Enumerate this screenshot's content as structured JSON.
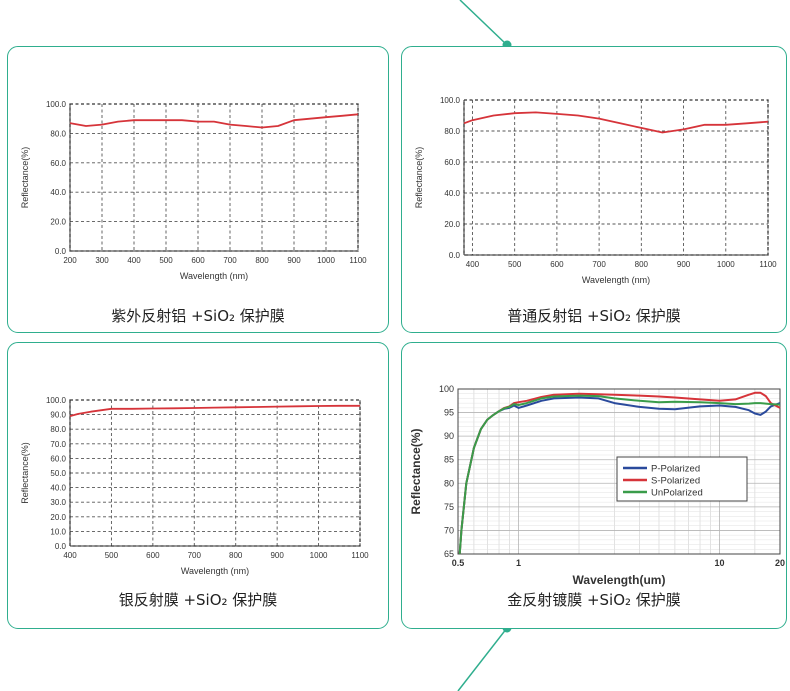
{
  "colors": {
    "card_border": "#2fae8e",
    "reflect_line": "#d6343a",
    "grid": "#555555"
  },
  "panels": [
    {
      "caption": "紫外反射铝 +SiO₂ 保护膜"
    },
    {
      "caption": "普通反射铝 +SiO₂ 保护膜"
    },
    {
      "caption": "银反射膜 +SiO₂ 保护膜"
    },
    {
      "caption": "金反射镀膜 +SiO₂ 保护膜"
    }
  ],
  "chart_data": [
    {
      "type": "line",
      "xlabel": "Wavelength (nm)",
      "ylabel": "Reflectance(%)",
      "xlim": [
        200,
        1100
      ],
      "ylim": [
        0,
        100
      ],
      "xticks": [
        "200",
        "300",
        "400",
        "500",
        "600",
        "700",
        "800",
        "900",
        "1000",
        "1100"
      ],
      "yticks": [
        "0.0",
        "20.0",
        "40.0",
        "60.0",
        "80.0",
        "100.0"
      ],
      "grid": true,
      "series": [
        {
          "color": "#d6343a",
          "x": [
            200,
            250,
            300,
            350,
            400,
            450,
            500,
            550,
            600,
            650,
            700,
            750,
            800,
            850,
            900,
            950,
            1000,
            1050,
            1100
          ],
          "y": [
            87,
            85,
            86,
            88,
            89,
            89,
            89,
            89,
            88,
            88,
            86,
            85,
            84,
            85,
            89,
            90,
            91,
            92,
            93
          ]
        }
      ]
    },
    {
      "type": "line",
      "xlabel": "Wavelength (nm)",
      "ylabel": "Reflectance(%)",
      "xlim": [
        380,
        1100
      ],
      "ylim": [
        0,
        100
      ],
      "xticks": [
        "400",
        "500",
        "600",
        "700",
        "800",
        "900",
        "1000",
        "1100"
      ],
      "yticks": [
        "0.0",
        "20.0",
        "40.0",
        "60.0",
        "80.0",
        "100.0"
      ],
      "grid": true,
      "series": [
        {
          "color": "#d6343a",
          "x": [
            380,
            400,
            450,
            500,
            550,
            600,
            650,
            700,
            750,
            800,
            850,
            900,
            950,
            1000,
            1050,
            1100
          ],
          "y": [
            85,
            87,
            90,
            91.5,
            92,
            91,
            90,
            88,
            85,
            82,
            79,
            81,
            84,
            84,
            85,
            86
          ]
        }
      ]
    },
    {
      "type": "line",
      "xlabel": "Wavelength (nm)",
      "ylabel": "Reflectance(%)",
      "xlim": [
        400,
        1100
      ],
      "ylim": [
        0,
        100
      ],
      "xticks": [
        "400",
        "500",
        "600",
        "700",
        "800",
        "900",
        "1000",
        "1100"
      ],
      "yticks": [
        "0.0",
        "10.0",
        "20.0",
        "30.0",
        "40.0",
        "50.0",
        "60.0",
        "70.0",
        "80.0",
        "90.0",
        "100.0"
      ],
      "grid": true,
      "series": [
        {
          "color": "#d6343a",
          "x": [
            400,
            420,
            450,
            500,
            550,
            600,
            650,
            700,
            750,
            800,
            850,
            900,
            950,
            1000,
            1050,
            1100
          ],
          "y": [
            89,
            90.5,
            92,
            94,
            94,
            94.2,
            94.3,
            94.5,
            94.8,
            95,
            95.2,
            95.5,
            95.7,
            95.9,
            96,
            96
          ]
        }
      ]
    },
    {
      "type": "line",
      "xlabel": "Wavelength(um)",
      "ylabel": "Reflectance(%)",
      "xscale": "log",
      "xlim": [
        0.5,
        20
      ],
      "ylim": [
        65,
        100
      ],
      "xticks": [
        "0.5",
        "1",
        "10",
        "20"
      ],
      "yticks": [
        "65",
        "70",
        "75",
        "80",
        "85",
        "90",
        "95",
        "100"
      ],
      "grid": true,
      "legend": "center-right",
      "series": [
        {
          "name": "P-Polarized",
          "color": "#2a4a9c",
          "x": [
            0.51,
            0.52,
            0.55,
            0.6,
            0.65,
            0.7,
            0.75,
            0.8,
            0.85,
            0.9,
            0.95,
            1.0,
            1.1,
            1.3,
            1.5,
            2.0,
            2.5,
            3,
            4,
            5,
            6,
            8,
            10,
            12,
            14,
            15,
            16,
            17,
            18,
            20
          ],
          "y": [
            65,
            70,
            80,
            87.5,
            91.5,
            93.5,
            94.5,
            95.3,
            95.8,
            96,
            96.5,
            96,
            96.5,
            97.5,
            98,
            98.2,
            98,
            97,
            96.2,
            95.8,
            95.7,
            96.3,
            96.5,
            96.2,
            95.5,
            94.8,
            94.5,
            95.2,
            96.3,
            97
          ]
        },
        {
          "name": "S-Polarized",
          "color": "#d6343a",
          "x": [
            0.51,
            0.52,
            0.55,
            0.6,
            0.65,
            0.7,
            0.75,
            0.8,
            0.85,
            0.9,
            0.95,
            1.0,
            1.1,
            1.3,
            1.5,
            2.0,
            2.5,
            3,
            4,
            5,
            6,
            8,
            10,
            12,
            14,
            15,
            16,
            17,
            18,
            20
          ],
          "y": [
            65,
            70,
            80,
            87.5,
            91.5,
            93.5,
            94.5,
            95.3,
            96,
            96.3,
            97,
            97.2,
            97.5,
            98.3,
            98.8,
            99,
            98.9,
            98.8,
            98.6,
            98.4,
            98.2,
            97.8,
            97.5,
            97.8,
            98.8,
            99.2,
            99.2,
            98.5,
            97,
            96
          ]
        },
        {
          "name": "UnPolarized",
          "color": "#3a9c4a",
          "x": [
            0.51,
            0.52,
            0.55,
            0.6,
            0.65,
            0.7,
            0.75,
            0.8,
            0.85,
            0.9,
            0.95,
            1.0,
            1.1,
            1.3,
            1.5,
            2.0,
            2.5,
            3,
            4,
            5,
            6,
            8,
            10,
            12,
            14,
            15,
            16,
            17,
            18,
            20
          ],
          "y": [
            65,
            70,
            80,
            87.5,
            91.5,
            93.5,
            94.5,
            95.3,
            95.9,
            96.2,
            96.8,
            96.6,
            97,
            98,
            98.4,
            98.6,
            98.5,
            98,
            97.5,
            97.2,
            97.3,
            97.2,
            97,
            96.8,
            96.9,
            97,
            97,
            96.9,
            96.8,
            96.7
          ]
        }
      ]
    }
  ]
}
